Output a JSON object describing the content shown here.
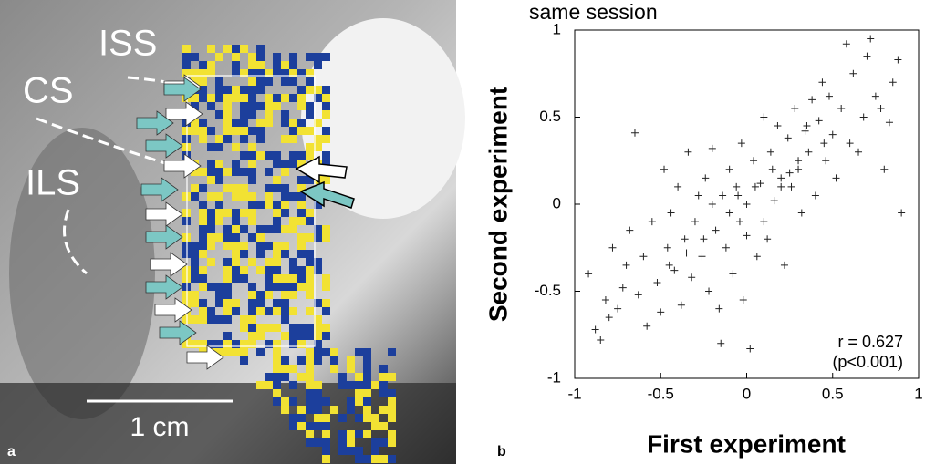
{
  "panel_a": {
    "labels": [
      "ISS",
      "CS",
      "ILS"
    ],
    "scale_bar": "1 cm",
    "panel_label": "a"
  },
  "chart_data": {
    "type": "scatter",
    "title": "same session",
    "panel_label": "b",
    "x_label": "First experiment",
    "y_label": "Second experiment",
    "annotations": [
      "r = 0.627",
      "(p<0.001)"
    ],
    "xlim": [
      -1,
      1
    ],
    "ylim": [
      -1,
      1
    ],
    "xticks": [
      -1,
      -0.5,
      0,
      0.5,
      1
    ],
    "yticks": [
      -1,
      -0.5,
      0,
      0.5,
      1
    ],
    "color": "#222222",
    "x": [
      -0.92,
      -0.88,
      -0.85,
      -0.82,
      -0.8,
      -0.78,
      -0.75,
      -0.72,
      -0.7,
      -0.68,
      -0.65,
      -0.63,
      -0.6,
      -0.58,
      -0.55,
      -0.52,
      -0.5,
      -0.48,
      -0.46,
      -0.44,
      -0.42,
      -0.4,
      -0.38,
      -0.36,
      -0.34,
      -0.32,
      -0.3,
      -0.28,
      -0.26,
      -0.24,
      -0.22,
      -0.2,
      -0.18,
      -0.16,
      -0.15,
      -0.14,
      -0.12,
      -0.1,
      -0.08,
      -0.06,
      -0.04,
      -0.03,
      -0.02,
      0,
      0.02,
      0.04,
      0.06,
      0.08,
      0.1,
      0.12,
      0.14,
      0.16,
      0.18,
      0.2,
      0.22,
      0.24,
      0.26,
      0.28,
      0.3,
      0.32,
      0.34,
      0.36,
      0.38,
      0.4,
      0.42,
      0.44,
      0.46,
      0.48,
      0.5,
      0.52,
      0.55,
      0.58,
      0.6,
      0.62,
      0.65,
      0.68,
      0.7,
      0.72,
      0.75,
      0.78,
      0.8,
      0.83,
      0.85,
      0.88,
      0.9,
      -0.1,
      0.05,
      0.15,
      -0.25,
      0.3,
      -0.05,
      0.1,
      -0.2,
      0.25,
      0.45,
      -0.35,
      0,
      0.2,
      -0.45,
      0.35
    ],
    "values": [
      -0.4,
      -0.72,
      -0.78,
      -0.55,
      -0.65,
      -0.25,
      -0.6,
      -0.48,
      -0.35,
      -0.15,
      0.41,
      -0.52,
      -0.3,
      -0.7,
      -0.1,
      -0.45,
      -0.62,
      0.2,
      -0.25,
      -0.05,
      -0.38,
      0.1,
      -0.58,
      -0.2,
      0.3,
      -0.42,
      -0.1,
      0.05,
      -0.3,
      0.15,
      -0.5,
      0.32,
      -0.15,
      -0.6,
      -0.8,
      0.05,
      -0.25,
      0.2,
      -0.4,
      0.1,
      -0.1,
      0.35,
      -0.55,
      0,
      -0.83,
      0.25,
      -0.3,
      0.12,
      0.5,
      -0.2,
      0.3,
      0.02,
      0.45,
      0.15,
      -0.35,
      0.38,
      0.1,
      0.55,
      0.2,
      -0.05,
      0.42,
      0.3,
      0.6,
      0.05,
      0.48,
      0.7,
      0.25,
      0.62,
      0.4,
      0.15,
      0.55,
      0.92,
      0.35,
      0.75,
      0.3,
      0.5,
      0.85,
      0.95,
      0.62,
      0.55,
      0.2,
      0.47,
      0.7,
      0.83,
      -0.05,
      -0.05,
      0.1,
      0.2,
      -0.2,
      0.25,
      0.05,
      -0.1,
      0,
      0.18,
      0.35,
      -0.28,
      -0.18,
      0.1,
      -0.35,
      0.45
    ]
  }
}
